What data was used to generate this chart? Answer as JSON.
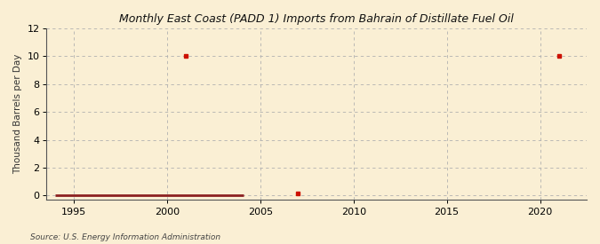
{
  "title": "Monthly East Coast (PADD 1) Imports from Bahrain of Distillate Fuel Oil",
  "ylabel": "Thousand Barrels per Day",
  "source": "Source: U.S. Energy Information Administration",
  "background_color": "#faefd4",
  "line_color": "#8b2020",
  "marker_color": "#cc1100",
  "xlim": [
    1993.5,
    2022.5
  ],
  "ylim": [
    -0.3,
    12
  ],
  "yticks": [
    0,
    2,
    4,
    6,
    8,
    10,
    12
  ],
  "xticks": [
    1995,
    2000,
    2005,
    2010,
    2015,
    2020
  ],
  "line_data_x": [
    1994.0,
    1994.083,
    1994.167,
    1994.25,
    1994.333,
    1994.417,
    1994.5,
    1994.583,
    1994.667,
    1994.75,
    1994.833,
    1994.917,
    1995.0,
    1995.083,
    1995.167,
    1995.25,
    1995.333,
    1995.417,
    1995.5,
    1995.583,
    1995.667,
    1995.75,
    1995.833,
    1995.917,
    1996.0,
    1996.083,
    1996.167,
    1996.25,
    1996.333,
    1996.417,
    1996.5,
    1996.583,
    1996.667,
    1996.75,
    1996.833,
    1996.917,
    1997.0,
    1997.083,
    1997.167,
    1997.25,
    1997.333,
    1997.417,
    1997.5,
    1997.583,
    1997.667,
    1997.75,
    1997.833,
    1997.917,
    1998.0,
    1998.083,
    1998.167,
    1998.25,
    1998.333,
    1998.417,
    1998.5,
    1998.583,
    1998.667,
    1998.75,
    1998.833,
    1998.917,
    1999.0,
    1999.083,
    1999.167,
    1999.25,
    1999.333,
    1999.417,
    1999.5,
    1999.583,
    1999.667,
    1999.75,
    1999.833,
    1999.917,
    2000.0,
    2000.083,
    2000.167,
    2000.25,
    2000.333,
    2000.417,
    2000.5,
    2000.583,
    2000.667,
    2000.75,
    2000.833,
    2000.917,
    2001.0,
    2001.083,
    2001.167,
    2001.25,
    2001.333,
    2001.417,
    2001.5,
    2001.583,
    2001.667,
    2001.75,
    2001.833,
    2001.917,
    2002.0,
    2002.083,
    2002.167,
    2002.25,
    2002.333,
    2002.417,
    2002.5,
    2002.583,
    2002.667,
    2002.75,
    2002.833,
    2002.917,
    2003.0,
    2003.083,
    2003.167,
    2003.25,
    2003.333,
    2003.417,
    2003.5,
    2003.583,
    2003.667,
    2003.75,
    2003.833,
    2003.917,
    2004.0,
    2004.083
  ],
  "line_data_y": [
    0,
    0,
    0,
    0,
    0,
    0,
    0,
    0,
    0,
    0,
    0,
    0,
    0,
    0,
    0,
    0,
    0,
    0,
    0,
    0,
    0,
    0,
    0,
    0,
    0,
    0,
    0,
    0,
    0,
    0,
    0,
    0,
    0,
    0,
    0,
    0,
    0,
    0,
    0,
    0,
    0,
    0,
    0,
    0,
    0,
    0,
    0,
    0,
    0,
    0,
    0,
    0,
    0,
    0,
    0,
    0,
    0,
    0,
    0,
    0,
    0,
    0,
    0,
    0,
    0,
    0,
    0,
    0,
    0,
    0,
    0,
    0,
    0,
    0,
    0,
    0,
    0,
    0,
    0,
    0,
    0,
    0,
    0,
    0,
    0,
    0,
    0,
    0,
    0,
    0,
    0,
    0,
    0,
    0,
    0,
    0,
    0,
    0,
    0,
    0,
    0,
    0,
    0,
    0,
    0,
    0,
    0,
    0,
    0,
    0,
    0,
    0,
    0,
    0,
    0,
    0,
    0,
    0,
    0,
    0,
    0,
    0
  ],
  "scatter_points": [
    [
      2001.0,
      10.0
    ],
    [
      2007.0,
      0.15
    ],
    [
      2021.0,
      10.0
    ]
  ]
}
